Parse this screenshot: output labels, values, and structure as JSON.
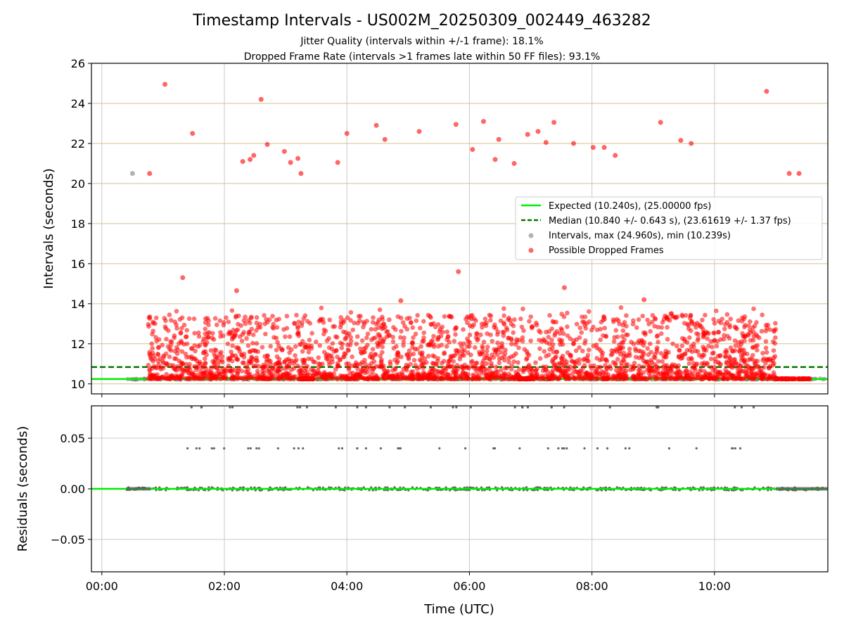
{
  "chart_data": [
    {
      "type": "scatter",
      "title": "Timestamp Intervals - US002M_20250309_002449_463282",
      "subtitle_lines": [
        "Jitter Quality (intervals within +/-1 frame): 18.1%",
        "Dropped Frame Rate (intervals >1 frames late within 50 FF files): 93.1%"
      ],
      "xlabel": "",
      "ylabel": "Intervals (seconds)",
      "xlim": [
        -0.17,
        11.85
      ],
      "ylim": [
        9.5,
        26
      ],
      "yticks": [
        10,
        12,
        14,
        16,
        18,
        20,
        22,
        24,
        26
      ],
      "ytick_labels": [
        "10",
        "12",
        "14",
        "16",
        "18",
        "20",
        "22",
        "24",
        "26"
      ],
      "xticks": [
        0,
        2,
        4,
        6,
        8,
        10
      ],
      "grid": true,
      "legend_position": "center-right",
      "lines": [
        {
          "name": "Expected (10.240s), (25.00000 fps)",
          "y": 10.24,
          "color": "#00ee00",
          "style": "solid"
        },
        {
          "name": "Median (10.840 +/- 0.643 s), (23.61619 +/- 1.37 fps)",
          "y": 10.84,
          "color": "#007700",
          "style": "dashed"
        }
      ],
      "series": [
        {
          "name": "Intervals, max (24.960s), min (10.239s)",
          "color": "#808080",
          "x_range": [
            0.4,
            11.85
          ],
          "y_base": 10.24
        },
        {
          "name": "Possible Dropped Frames",
          "color": "#ff0000",
          "x_range": [
            0.75,
            11.0
          ],
          "y_range": [
            10.25,
            15.4
          ]
        }
      ],
      "outliers": [
        {
          "x": 0.5,
          "y": 20.5,
          "color": "#808080"
        },
        {
          "x": 0.78,
          "y": 20.5
        },
        {
          "x": 1.03,
          "y": 24.95
        },
        {
          "x": 1.48,
          "y": 22.5
        },
        {
          "x": 2.3,
          "y": 21.1
        },
        {
          "x": 2.42,
          "y": 21.2
        },
        {
          "x": 2.48,
          "y": 21.4
        },
        {
          "x": 2.6,
          "y": 24.2
        },
        {
          "x": 2.7,
          "y": 21.95
        },
        {
          "x": 2.98,
          "y": 21.6
        },
        {
          "x": 3.08,
          "y": 21.05
        },
        {
          "x": 3.2,
          "y": 21.25
        },
        {
          "x": 3.25,
          "y": 20.5
        },
        {
          "x": 3.85,
          "y": 21.05
        },
        {
          "x": 4.0,
          "y": 22.5
        },
        {
          "x": 4.48,
          "y": 22.9
        },
        {
          "x": 4.62,
          "y": 22.2
        },
        {
          "x": 5.18,
          "y": 22.6
        },
        {
          "x": 5.78,
          "y": 22.95
        },
        {
          "x": 6.05,
          "y": 21.7
        },
        {
          "x": 6.23,
          "y": 23.1
        },
        {
          "x": 6.42,
          "y": 21.2
        },
        {
          "x": 6.48,
          "y": 22.2
        },
        {
          "x": 6.73,
          "y": 21.0
        },
        {
          "x": 6.95,
          "y": 22.45
        },
        {
          "x": 7.12,
          "y": 22.6
        },
        {
          "x": 7.25,
          "y": 22.05
        },
        {
          "x": 7.38,
          "y": 23.05
        },
        {
          "x": 7.7,
          "y": 22.0
        },
        {
          "x": 8.02,
          "y": 21.8
        },
        {
          "x": 8.2,
          "y": 21.8
        },
        {
          "x": 8.38,
          "y": 21.4
        },
        {
          "x": 9.12,
          "y": 23.05
        },
        {
          "x": 9.45,
          "y": 22.15
        },
        {
          "x": 9.62,
          "y": 22.0
        },
        {
          "x": 10.85,
          "y": 24.6
        },
        {
          "x": 11.22,
          "y": 20.5
        },
        {
          "x": 11.38,
          "y": 20.5
        },
        {
          "x": 5.82,
          "y": 15.6
        },
        {
          "x": 1.32,
          "y": 15.3
        },
        {
          "x": 7.55,
          "y": 14.8
        },
        {
          "x": 2.2,
          "y": 14.65
        },
        {
          "x": 8.85,
          "y": 14.2
        },
        {
          "x": 4.88,
          "y": 14.15
        }
      ]
    },
    {
      "type": "scatter",
      "title": "",
      "xlabel": "Time (UTC)",
      "ylabel": "Residuals (seconds)",
      "xlim": [
        -0.17,
        11.85
      ],
      "ylim": [
        -0.082,
        0.082
      ],
      "yticks": [
        -0.05,
        0.0,
        0.05
      ],
      "ytick_labels": [
        "−0.05",
        "0.00",
        "0.05"
      ],
      "xticks": [
        0,
        2,
        4,
        6,
        8,
        10
      ],
      "xtick_labels": [
        "00:00",
        "02:00",
        "04:00",
        "06:00",
        "08:00",
        "10:00"
      ],
      "grid": true,
      "lines": [
        {
          "y": 0.0,
          "color": "#00ee00",
          "style": "solid"
        }
      ],
      "series": [
        {
          "name": "Residuals",
          "color": "#666666",
          "levels": [
            0.0,
            0.04,
            0.08
          ]
        }
      ]
    }
  ]
}
